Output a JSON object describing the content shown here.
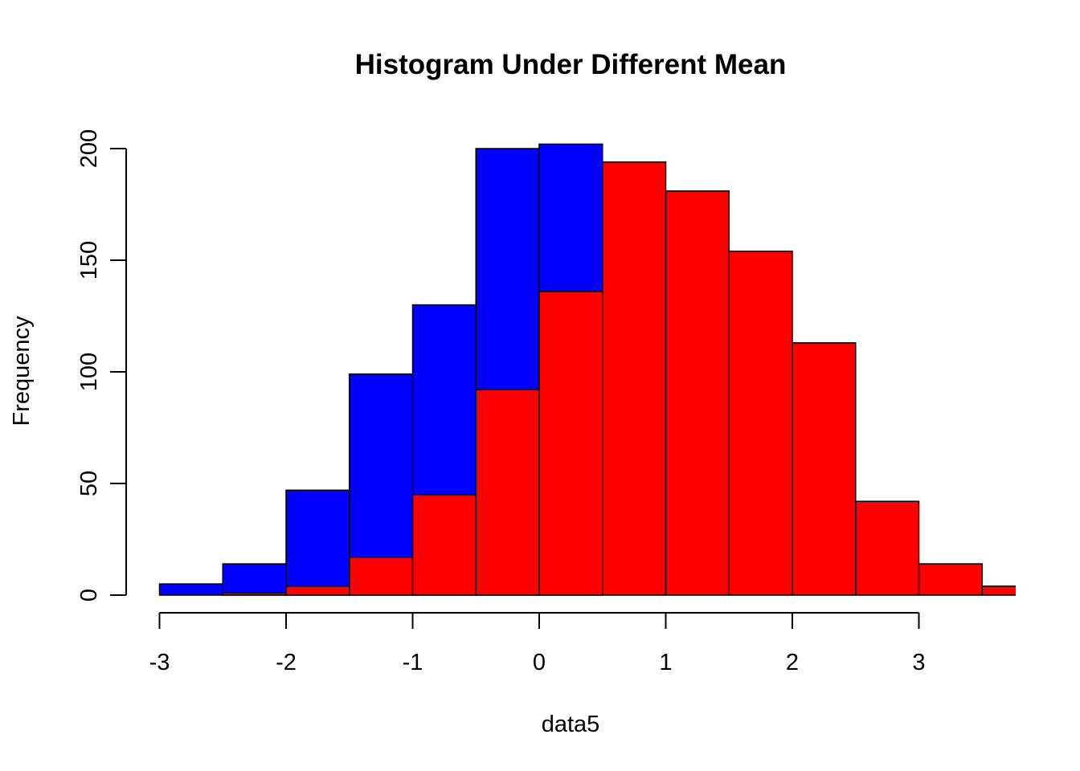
{
  "chart_data": {
    "type": "bar",
    "title": "Histogram Under Different Mean",
    "xlabel": "data5",
    "ylabel": "Frequency",
    "xlim": [
      -3,
      3.8
    ],
    "ylim": [
      0,
      202
    ],
    "x_ticks": [
      -3,
      -2,
      -1,
      0,
      1,
      2,
      3
    ],
    "y_ticks": [
      0,
      50,
      100,
      150,
      200
    ],
    "grid": false,
    "legend": "none",
    "bin_width": 0.5,
    "series": [
      {
        "color": "#0000ff",
        "bins": [
          {
            "start": -3.0,
            "end": -2.5,
            "count": 5
          },
          {
            "start": -2.5,
            "end": -2.0,
            "count": 14
          },
          {
            "start": -2.0,
            "end": -1.5,
            "count": 47
          },
          {
            "start": -1.5,
            "end": -1.0,
            "count": 99
          },
          {
            "start": -1.0,
            "end": -0.5,
            "count": 130
          },
          {
            "start": -0.5,
            "end": 0.0,
            "count": 200
          },
          {
            "start": 0.0,
            "end": 0.5,
            "count": 202
          }
        ]
      },
      {
        "color": "#ff0000",
        "bins": [
          {
            "start": -2.5,
            "end": -2.0,
            "count": 1
          },
          {
            "start": -2.0,
            "end": -1.5,
            "count": 4
          },
          {
            "start": -1.5,
            "end": -1.0,
            "count": 17
          },
          {
            "start": -1.0,
            "end": -0.5,
            "count": 45
          },
          {
            "start": -0.5,
            "end": 0.0,
            "count": 92
          },
          {
            "start": 0.0,
            "end": 0.5,
            "count": 136
          },
          {
            "start": 0.5,
            "end": 1.0,
            "count": 194
          },
          {
            "start": 1.0,
            "end": 1.5,
            "count": 181
          },
          {
            "start": 1.5,
            "end": 2.0,
            "count": 154
          },
          {
            "start": 2.0,
            "end": 2.5,
            "count": 113
          },
          {
            "start": 2.5,
            "end": 3.0,
            "count": 42
          },
          {
            "start": 3.0,
            "end": 3.5,
            "count": 14
          },
          {
            "start": 3.5,
            "end": 4.0,
            "count": 4
          }
        ]
      }
    ]
  }
}
